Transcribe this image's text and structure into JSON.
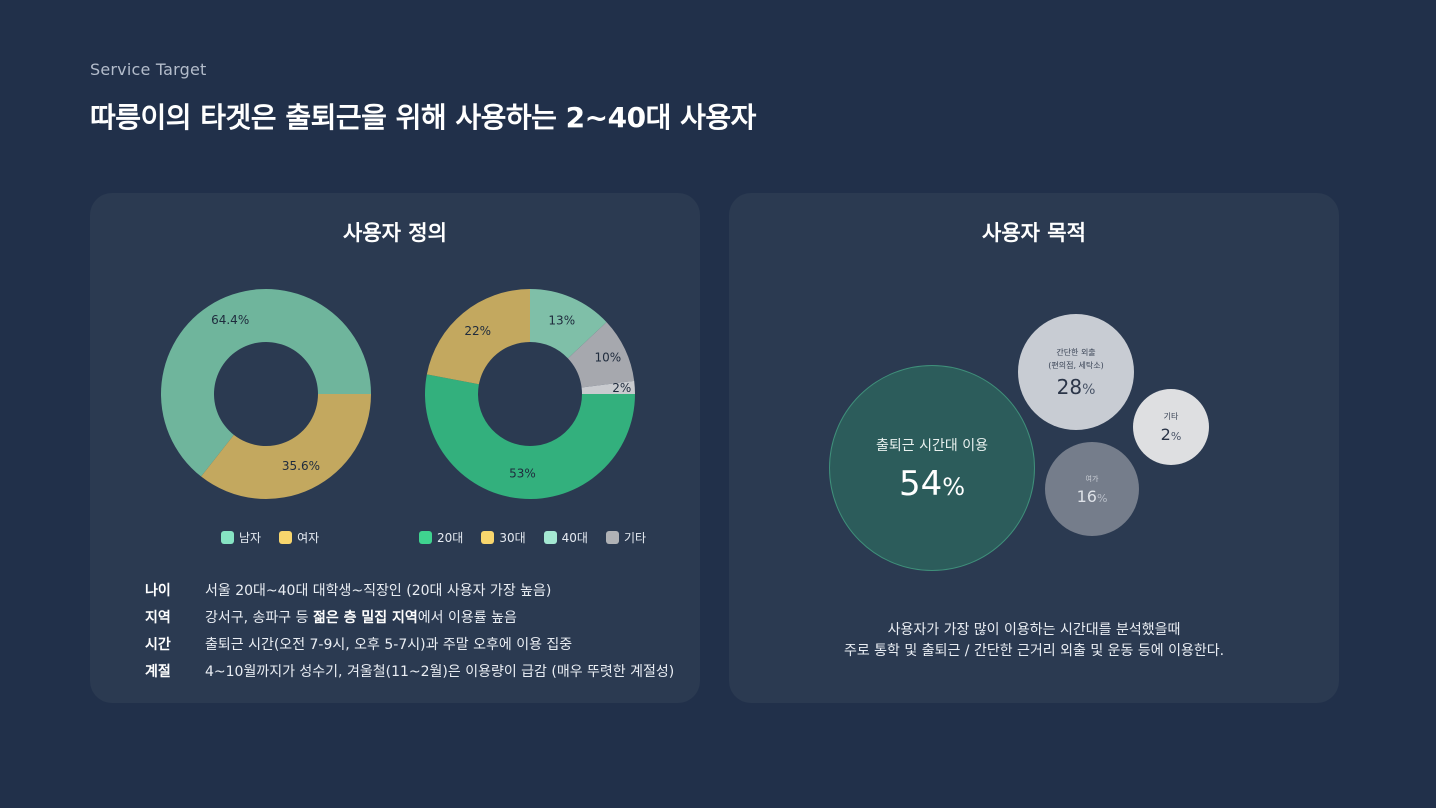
{
  "header": {
    "eyebrow": "Service Target",
    "title": "따릉이의 타겟은 출퇴근을 위해 사용하는 2~40대 사용자"
  },
  "left_card": {
    "title": "사용자 정의",
    "info": [
      {
        "key": "나이",
        "value": "서울 20대~40대  대학생~직장인 (20대 사용자 가장 높음)"
      },
      {
        "key": "지역",
        "pre": "강서구, 송파구 등 ",
        "bold": "젊은 층 밀집 지역",
        "post": "에서 이용률 높음"
      },
      {
        "key": "시간",
        "value": "출퇴근 시간(오전 7-9시, 오후 5-7시)과 주말 오후에 이용 집중"
      },
      {
        "key": "계절",
        "value": "4~10월까지가 성수기, 겨울철(11~2월)은 이용량이 급감 (매우 뚜렷한 계절성)"
      }
    ]
  },
  "right_card": {
    "title": "사용자 목적",
    "description_line1": "사용자가 가장 많이 이용하는 시간대를 분석했을때",
    "description_line2": "주로 통학 및 출퇴근 / 간단한 근거리 외출 및 운동 등에 이용한다."
  },
  "chart_data": [
    {
      "type": "pie",
      "donut": true,
      "categories": [
        "남자",
        "여자"
      ],
      "values": [
        64.4,
        35.6
      ],
      "labels": [
        "64.4%",
        "35.6%"
      ],
      "colors": [
        "#6fb59c",
        "#c3a85f"
      ],
      "legend_colors": [
        "#86e3c3",
        "#f8d66d"
      ],
      "legend": "bottom"
    },
    {
      "type": "pie",
      "donut": true,
      "categories": [
        "20대",
        "30대",
        "40대",
        "기타"
      ],
      "values": [
        53,
        22,
        13,
        10,
        2
      ],
      "slice_categories": [
        "20대",
        "30대",
        "40대",
        "기타",
        "기타"
      ],
      "labels": [
        "53%",
        "22%",
        "13%",
        "10%",
        "2%"
      ],
      "colors": [
        "#33b07d",
        "#c3a85f",
        "#7fbfa8",
        "#a6a8ae",
        "#c9cbcf"
      ],
      "legend_colors": [
        "#3fd38f",
        "#f8d66d",
        "#a4e8d2",
        "#b0b2b6"
      ],
      "legend": "bottom"
    },
    {
      "type": "bubble",
      "categories": [
        "출퇴근 시간대 이용",
        "간단한 외출\n(편의점, 세탁소)",
        "여가",
        "기타"
      ],
      "values": [
        54,
        28,
        16,
        2
      ],
      "colors": [
        "#2c5c5b",
        "#c8ccd3",
        "#757d8b",
        "#dedfe1"
      ]
    }
  ],
  "bubbles": [
    {
      "label": "출퇴근 시간대 이용",
      "number": "54",
      "unit": "%"
    },
    {
      "label_line1": "간단한 외출",
      "label_line2": "(편의점, 세탁소)",
      "number": "28",
      "unit": "%"
    },
    {
      "label": "기타",
      "number": "2",
      "unit": "%"
    },
    {
      "label": "여가",
      "number": "16",
      "unit": "%"
    }
  ]
}
